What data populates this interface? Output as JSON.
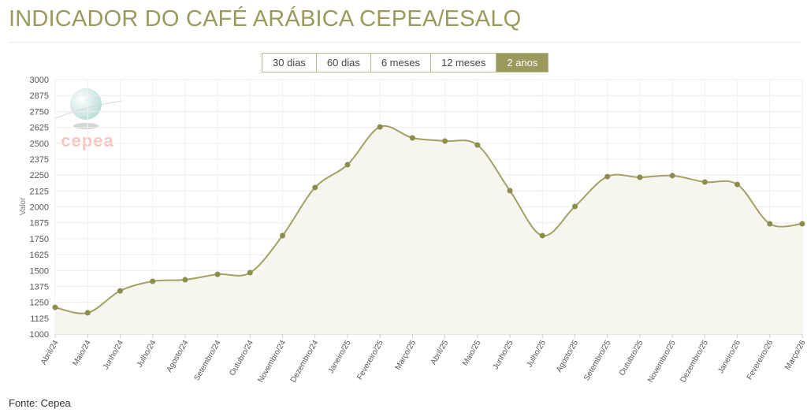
{
  "chart_data": {
    "type": "line",
    "title": "INDICADOR DO CAFÉ ARÁBICA CEPEA/ESALQ",
    "buttons": [
      "30 dias",
      "60 dias",
      "6 meses",
      "12 meses",
      "2 anos"
    ],
    "logo_text": "cepea",
    "y_label": "Valor",
    "source": "Fonte: Cepea",
    "categories": [
      "Abril/24",
      "Maio/24",
      "Junho/24",
      "Julho/24",
      "Agosto/24",
      "Setembro/24",
      "Outubro/24",
      "Novembro/24",
      "Dezembro/24",
      "Janeiro/25",
      "Fevereiro/25",
      "Março/25",
      "Abril/25",
      "Maio/25",
      "Junho/25",
      "Julho/25",
      "Agosto/25",
      "Setembro/25",
      "Outubro/25",
      "Novembro/25",
      "Dezembro/25",
      "Janeiro/26",
      "Fevereiro/26",
      "Março/26"
    ],
    "values": [
      1210,
      1167,
      1340,
      1415,
      1427,
      1470,
      1483,
      1774,
      2152,
      2331,
      2628,
      2542,
      2517,
      2486,
      2127,
      1774,
      2003,
      2238,
      2232,
      2245,
      2195,
      2176,
      1867,
      1867
    ],
    "color": "#a3a066",
    "marker_color": "#8c8c4e",
    "fill_color": "#f6f6ef",
    "ylim": [
      1000,
      3000
    ],
    "yticks": [
      1000,
      1125,
      1250,
      1375,
      1500,
      1625,
      1750,
      1875,
      2000,
      2125,
      2250,
      2375,
      2500,
      2625,
      2750,
      2875,
      3000
    ],
    "grid": true
  }
}
